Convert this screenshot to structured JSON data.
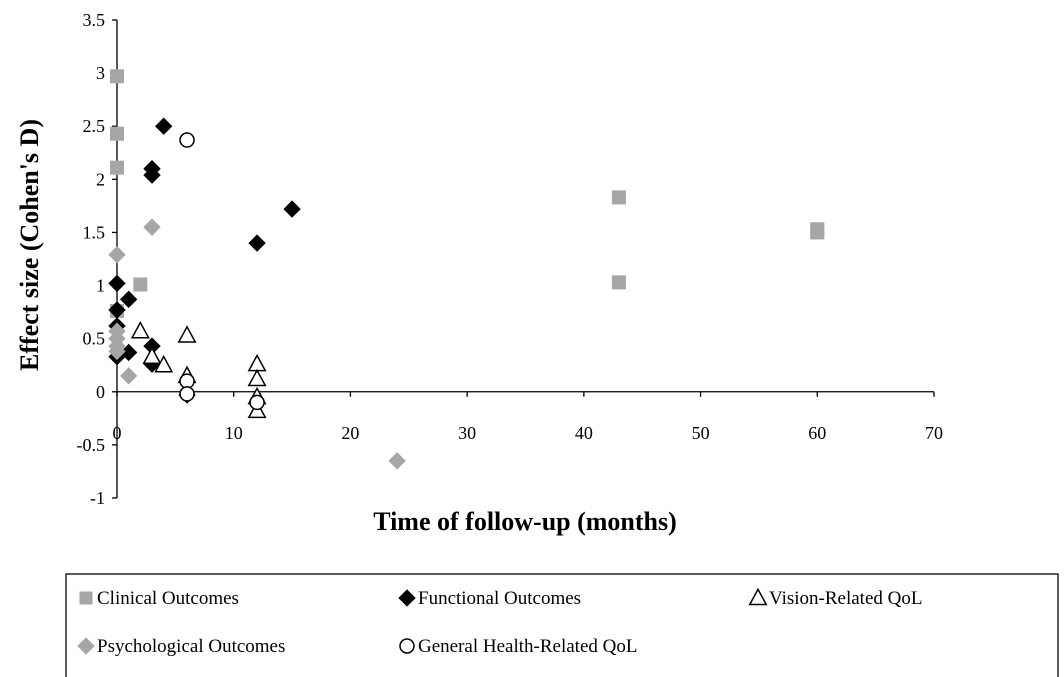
{
  "chart_data": {
    "type": "scatter",
    "xlabel": "Time of follow-up (months)",
    "ylabel": "Effect size (Cohen's D)",
    "xlim": [
      0,
      70
    ],
    "ylim": [
      -1,
      3.5
    ],
    "x_ticks": [
      "0",
      "10",
      "20",
      "30",
      "40",
      "50",
      "60",
      "70"
    ],
    "y_ticks": [
      "-1",
      "-0.5",
      "0",
      "0.5",
      "1",
      "1.5",
      "2",
      "2.5",
      "3",
      "3.5"
    ],
    "grid": false,
    "legend_position": "bottom",
    "series": [
      {
        "name": "Clinical Outcomes",
        "marker": "square",
        "color": "#a6a6a6",
        "points": [
          [
            0,
            2.97
          ],
          [
            0,
            2.43
          ],
          [
            0,
            2.11
          ],
          [
            0,
            0.76
          ],
          [
            2,
            1.01
          ],
          [
            43,
            1.83
          ],
          [
            43,
            1.03
          ],
          [
            60,
            1.53
          ],
          [
            60,
            1.5
          ]
        ]
      },
      {
        "name": "Functional Outcomes",
        "marker": "diamond",
        "color": "#000000",
        "points": [
          [
            0,
            1.02
          ],
          [
            0,
            0.77
          ],
          [
            0,
            0.62
          ],
          [
            0,
            0.33
          ],
          [
            1,
            0.87
          ],
          [
            1,
            0.37
          ],
          [
            3,
            2.1
          ],
          [
            3,
            2.04
          ],
          [
            3,
            0.43
          ],
          [
            3,
            0.26
          ],
          [
            4,
            2.5
          ],
          [
            6,
            -0.03
          ],
          [
            12,
            1.4
          ],
          [
            15,
            1.72
          ]
        ]
      },
      {
        "name": "Vision-Related QoL",
        "marker": "triangle",
        "color": "#000000",
        "points": [
          [
            2,
            0.57
          ],
          [
            3,
            0.33
          ],
          [
            4,
            0.25
          ],
          [
            6,
            0.53
          ],
          [
            6,
            0.15
          ],
          [
            12,
            0.26
          ],
          [
            12,
            0.12
          ],
          [
            12,
            -0.05
          ],
          [
            12,
            -0.18
          ]
        ]
      },
      {
        "name": "Psychological Outcomes",
        "marker": "diamond",
        "color": "#a6a6a6",
        "points": [
          [
            0,
            1.29
          ],
          [
            0,
            0.57
          ],
          [
            0,
            0.5
          ],
          [
            0,
            0.43
          ],
          [
            0,
            0.38
          ],
          [
            1,
            0.15
          ],
          [
            3,
            1.55
          ],
          [
            24,
            -0.65
          ]
        ]
      },
      {
        "name": "General Health-Related QoL",
        "marker": "circle",
        "color": "#000000",
        "points": [
          [
            6,
            2.37
          ],
          [
            6,
            0.1
          ],
          [
            6,
            -0.02
          ],
          [
            12,
            -0.1
          ]
        ]
      }
    ]
  }
}
